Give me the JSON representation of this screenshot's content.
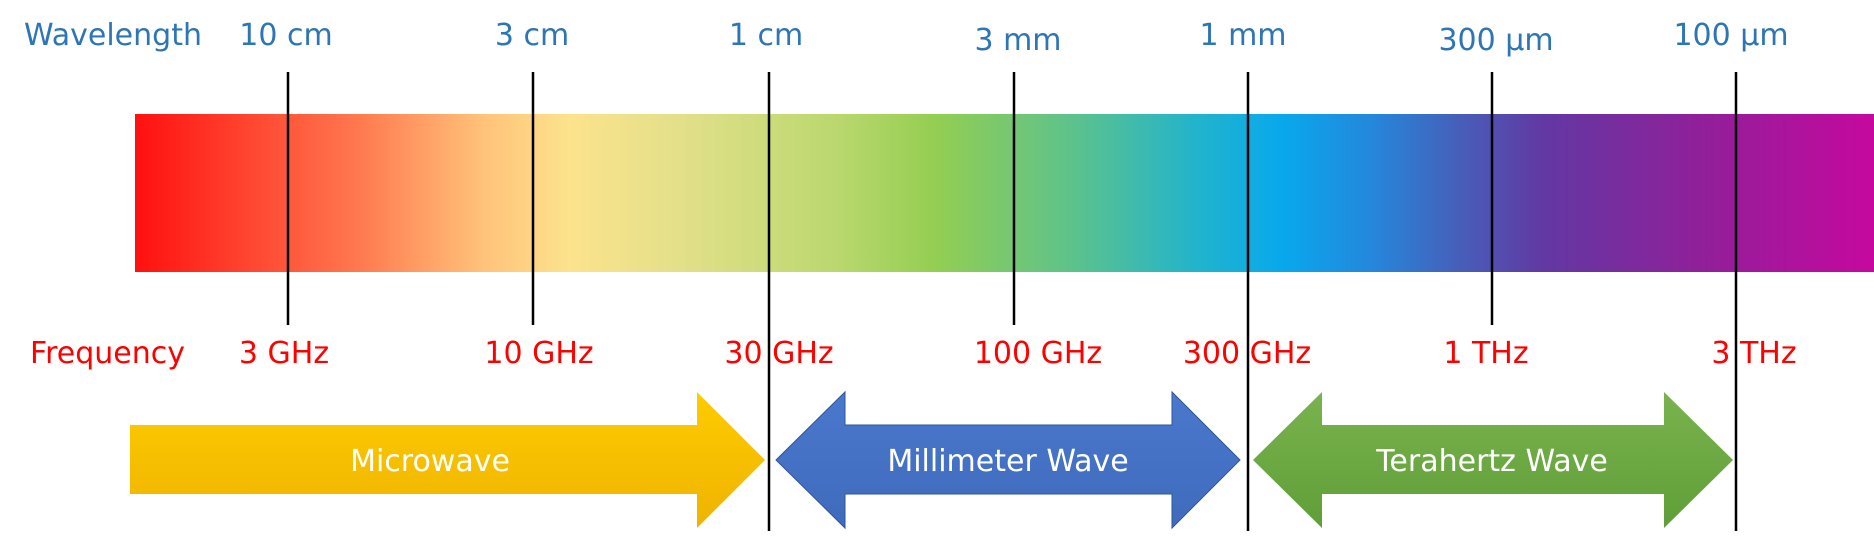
{
  "wavelength_label": "Wavelength",
  "frequency_label": "Frequency",
  "ticks": [
    {
      "wavelength": "10 cm",
      "frequency": "3 GHz"
    },
    {
      "wavelength": "3 cm",
      "frequency": "10 GHz"
    },
    {
      "wavelength": "1 cm",
      "frequency": "30 GHz"
    },
    {
      "wavelength": "3 mm",
      "frequency": "100 GHz"
    },
    {
      "wavelength": "1 mm",
      "frequency": "300 GHz"
    },
    {
      "wavelength": "300 µm",
      "frequency": "1 THz"
    },
    {
      "wavelength": "100 µm",
      "frequency": "3 THz"
    }
  ],
  "bands": [
    {
      "label": "Microwave"
    },
    {
      "label": "Millimeter Wave"
    },
    {
      "label": "Terahertz Wave"
    }
  ],
  "colors": {
    "wavelength_text": "#2E75B6",
    "frequency_text": "#FF0000",
    "microwave": "#F5BC00",
    "millimeter": "#4472C4",
    "terahertz": "#70AD47"
  }
}
